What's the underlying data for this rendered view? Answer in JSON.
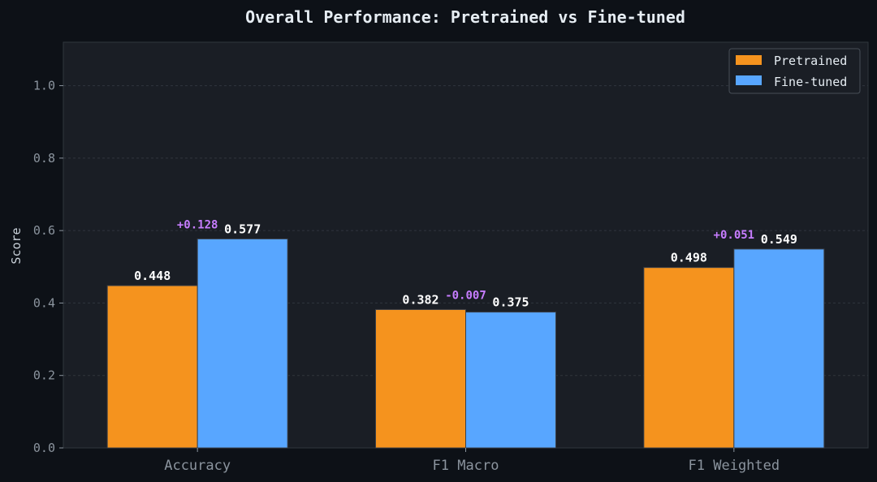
{
  "chart_data": {
    "type": "bar",
    "title": "Overall Performance: Pretrained vs Fine-tuned",
    "xlabel": "",
    "ylabel": "Score",
    "ylim": [
      0,
      1.12
    ],
    "yticks": [
      "0.0",
      "0.2",
      "0.4",
      "0.6",
      "0.8",
      "1.0"
    ],
    "categories": [
      "Accuracy",
      "F1 Macro",
      "F1 Weighted"
    ],
    "series": [
      {
        "name": "Pretrained",
        "color": "#f5931e",
        "values": [
          0.448,
          0.382,
          0.498
        ],
        "labels": [
          "0.448",
          "0.382",
          "0.498"
        ]
      },
      {
        "name": "Fine-tuned",
        "color": "#58a6ff",
        "values": [
          0.577,
          0.375,
          0.549
        ],
        "labels": [
          "0.577",
          "0.375",
          "0.549"
        ]
      }
    ],
    "deltas": [
      "+0.128",
      "-0.007",
      "+0.051"
    ],
    "delta_color": "#c77dff",
    "grid": true,
    "legend_position": "top-right",
    "colors": {
      "background": "#0d1117",
      "plot_background": "#161b22",
      "axis": "#30363d",
      "grid": "#30363d"
    }
  }
}
